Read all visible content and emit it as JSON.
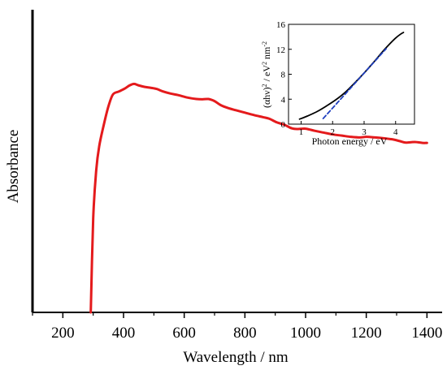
{
  "chart_data": [
    {
      "type": "line",
      "xlabel": "Wavelength / nm",
      "ylabel": "Absorbance",
      "xlim": [
        100,
        1450
      ],
      "ylim": [
        0,
        1.0
      ],
      "x_ticks": [
        200,
        400,
        600,
        800,
        1000,
        1200,
        1400
      ],
      "y_ticks_shown": false,
      "series": [
        {
          "color": "#e41a1c",
          "x": [
            292,
            300,
            310,
            320,
            335,
            350,
            365,
            385,
            405,
            420,
            435,
            450,
            470,
            490,
            510,
            530,
            555,
            580,
            610,
            640,
            660,
            680,
            700,
            720,
            745,
            770,
            800,
            830,
            860,
            880,
            905,
            930,
            955,
            975,
            1000,
            1030,
            1060,
            1090,
            1120,
            1150,
            1180,
            1200,
            1230,
            1260,
            1290,
            1310,
            1330,
            1360,
            1385,
            1400
          ],
          "y": [
            0.0,
            0.31,
            0.47,
            0.55,
            0.62,
            0.68,
            0.72,
            0.73,
            0.74,
            0.75,
            0.755,
            0.75,
            0.745,
            0.742,
            0.738,
            0.73,
            0.723,
            0.718,
            0.71,
            0.705,
            0.704,
            0.705,
            0.698,
            0.685,
            0.675,
            0.668,
            0.66,
            0.652,
            0.645,
            0.64,
            0.628,
            0.62,
            0.608,
            0.606,
            0.607,
            0.6,
            0.594,
            0.588,
            0.584,
            0.58,
            0.578,
            0.58,
            0.578,
            0.575,
            0.571,
            0.566,
            0.561,
            0.563,
            0.56,
            0.56
          ]
        }
      ]
    },
    {
      "type": "line",
      "title": "",
      "xlabel": "Photon energy / eV",
      "ylabel_parts": {
        "pre": "(αhν)",
        "exp1": "2",
        "mid": " / eV",
        "exp2": "2",
        "mid2": " nm",
        "exp3": "-2"
      },
      "xlim": [
        0.6,
        4.6
      ],
      "ylim": [
        0,
        16
      ],
      "x_ticks": [
        1,
        2,
        3,
        4
      ],
      "y_ticks": [
        0,
        4,
        8,
        12,
        16
      ],
      "series": [
        {
          "color": "#000000",
          "x": [
            0.95,
            1.2,
            1.5,
            1.8,
            2.1,
            2.4,
            2.7,
            3.0,
            3.3,
            3.6,
            3.8,
            4.0,
            4.15,
            4.25
          ],
          "y": [
            0.8,
            1.3,
            2.0,
            2.9,
            3.9,
            5.1,
            6.6,
            8.2,
            9.9,
            11.7,
            12.8,
            13.8,
            14.4,
            14.7
          ]
        },
        {
          "color": "#1f3fbf",
          "dashed": true,
          "x": [
            1.7,
            3.7
          ],
          "y": [
            0.9,
            12.1
          ]
        }
      ]
    }
  ]
}
